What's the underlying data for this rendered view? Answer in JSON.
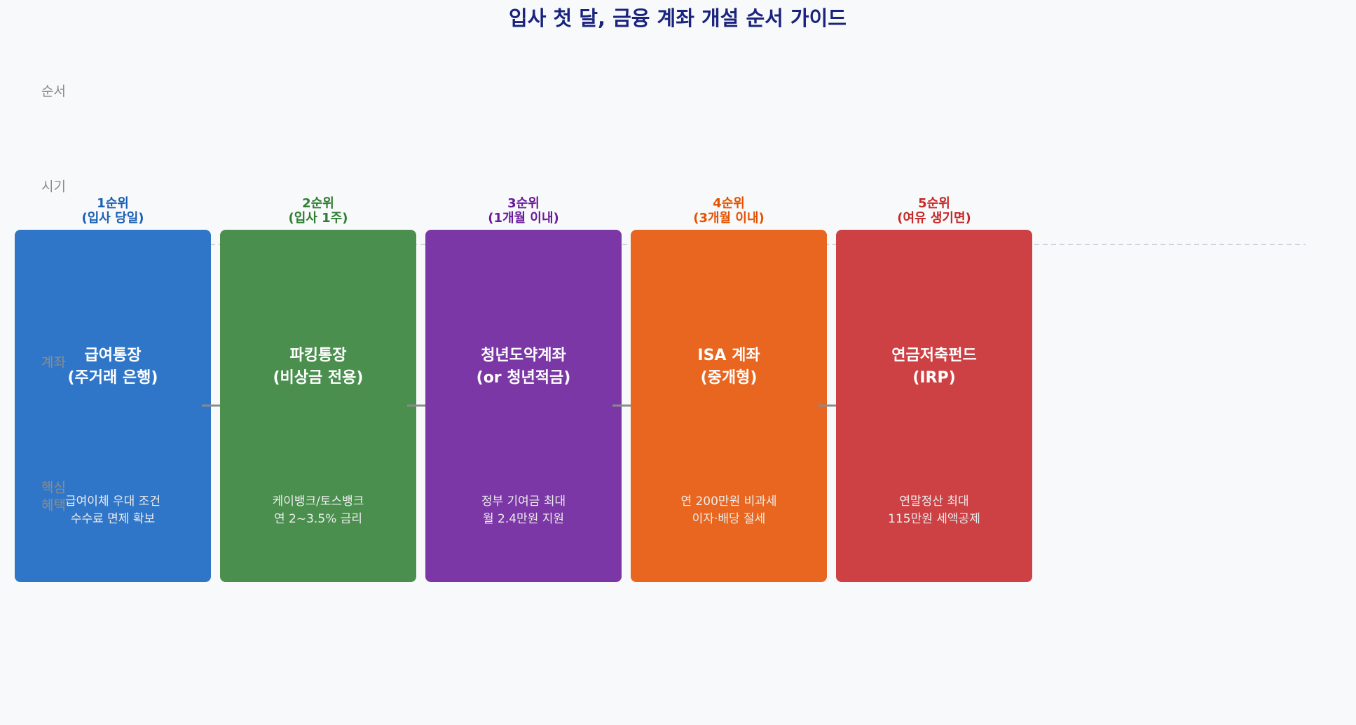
{
  "title": "입사 첫 달, 금융 계좌 개설 순서 가이드",
  "row_labels": [
    [
      "순서"
    ],
    [
      "시기"
    ],
    [
      "계좌"
    ],
    [
      "핵심",
      "혜택"
    ]
  ],
  "steps": [
    {
      "rank": "1순위",
      "timing": "(입사 당일)",
      "account": [
        "급여통장",
        "(주거래 은행)"
      ],
      "benefit": [
        "급여이체 우대 조건",
        "수수료 면제 확보"
      ],
      "color": "#3076c8",
      "label_color": "#1a5fb4"
    },
    {
      "rank": "2순위",
      "timing": "(입사 1주)",
      "account": [
        "파킹통장",
        "(비상금 전용)"
      ],
      "benefit": [
        "케이뱅크/토스뱅크",
        "연 2~3.5% 금리"
      ],
      "color": "#4a8f4e",
      "label_color": "#2e7d32"
    },
    {
      "rank": "3순위",
      "timing": "(1개월 이내)",
      "account": [
        "청년도약계좌",
        "(or 청년적금)"
      ],
      "benefit": [
        "정부 기여금 최대",
        "월 2.4만원 지원"
      ],
      "color": "#7b37a5",
      "label_color": "#6a1b9a"
    },
    {
      "rank": "4순위",
      "timing": "(3개월 이내)",
      "account": [
        "ISA 계좌",
        "(중개형)"
      ],
      "benefit": [
        "연 200만원 비과세",
        "이자·배당 절세"
      ],
      "color": "#e8661f",
      "label_color": "#e65100"
    },
    {
      "rank": "5순위",
      "timing": "(여유 생기면)",
      "account": [
        "연금저축펀드",
        "(IRP)"
      ],
      "benefit": [
        "연말정산 최대",
        "115만원 세액공제"
      ],
      "color": "#cd4044",
      "label_color": "#c62828"
    }
  ]
}
